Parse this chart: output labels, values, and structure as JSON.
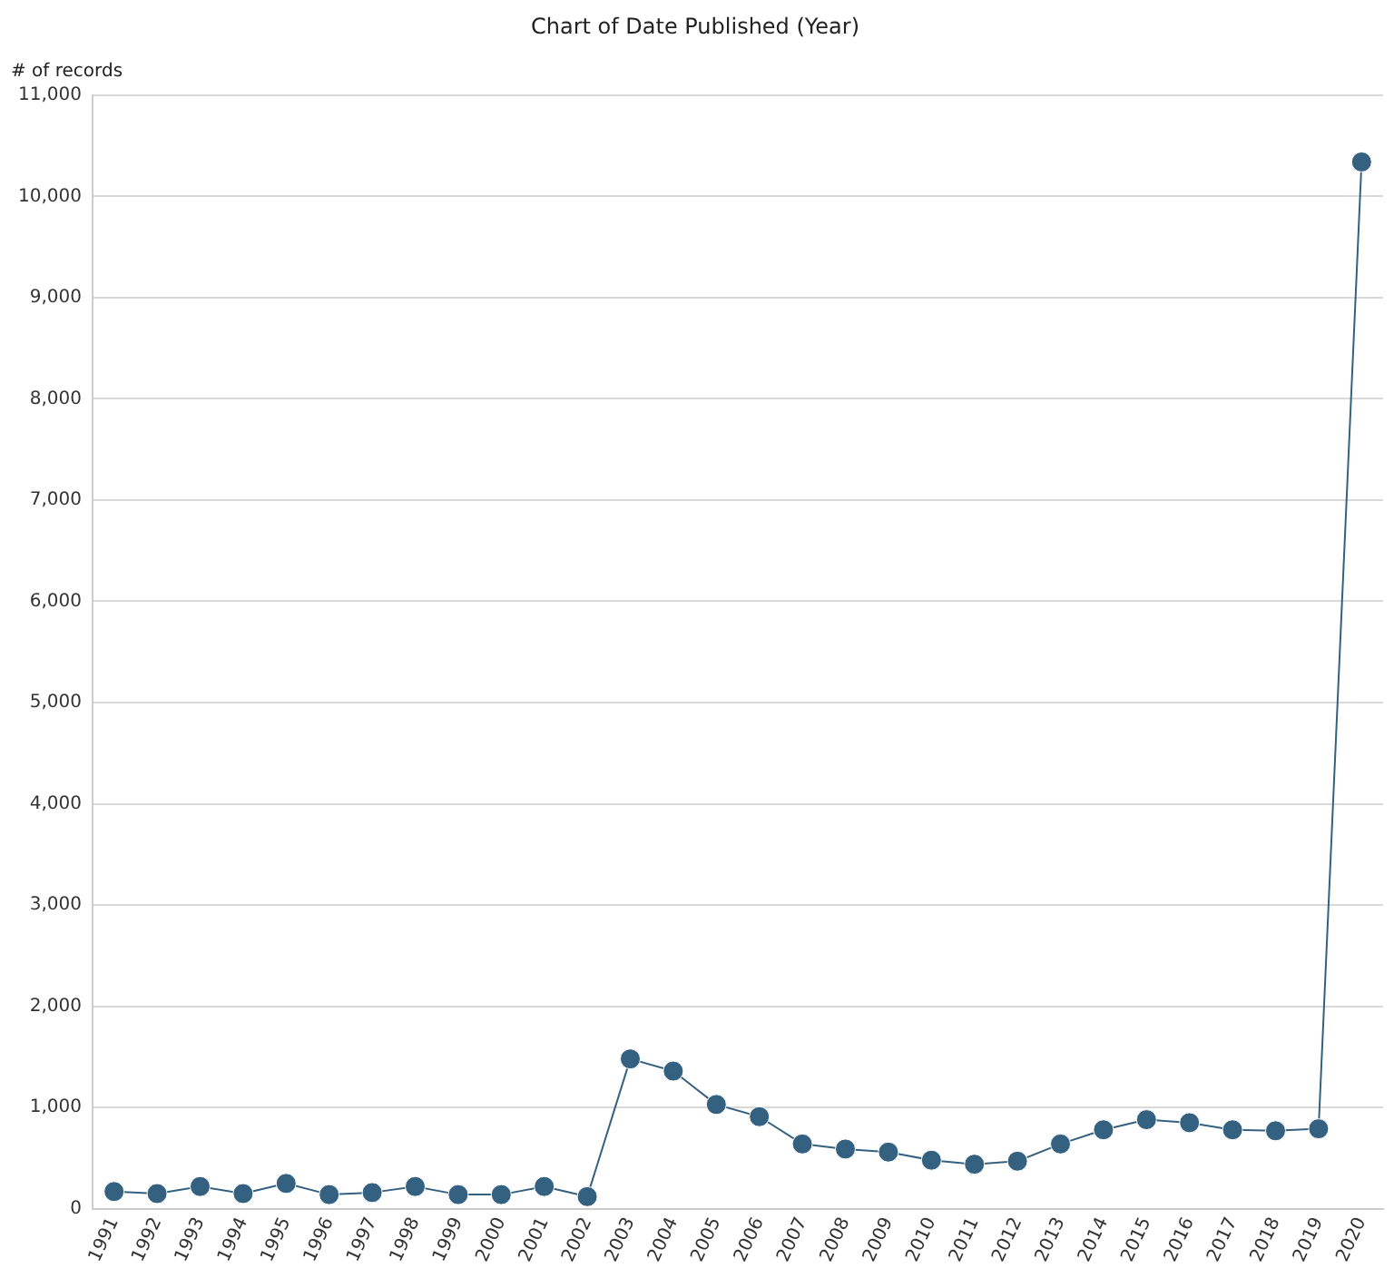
{
  "chart_data": {
    "type": "line",
    "title": "Chart of Date Published (Year)",
    "ylabel": "# of records",
    "categories": [
      "1991",
      "1992",
      "1993",
      "1994",
      "1995",
      "1996",
      "1997",
      "1998",
      "1999",
      "2000",
      "2001",
      "2002",
      "2003",
      "2004",
      "2005",
      "2006",
      "2007",
      "2008",
      "2009",
      "2010",
      "2011",
      "2012",
      "2013",
      "2014",
      "2015",
      "2016",
      "2017",
      "2018",
      "2019",
      "2020"
    ],
    "series": [
      {
        "color": "#346180",
        "values": [
          170,
          150,
          220,
          150,
          250,
          140,
          160,
          220,
          140,
          140,
          220,
          120,
          1480,
          1360,
          1030,
          910,
          640,
          590,
          560,
          480,
          440,
          470,
          640,
          780,
          880,
          850,
          780,
          770,
          790,
          10340
        ]
      }
    ],
    "ylim": [
      0,
      11000
    ],
    "yticks": [
      {
        "value": 0,
        "label": "0"
      },
      {
        "value": 1000,
        "label": "1,000"
      },
      {
        "value": 2000,
        "label": "2,000"
      },
      {
        "value": 3000,
        "label": "3,000"
      },
      {
        "value": 4000,
        "label": "4,000"
      },
      {
        "value": 5000,
        "label": "5,000"
      },
      {
        "value": 6000,
        "label": "6,000"
      },
      {
        "value": 7000,
        "label": "7,000"
      },
      {
        "value": 8000,
        "label": "8,000"
      },
      {
        "value": 9000,
        "label": "9,000"
      },
      {
        "value": 10000,
        "label": "10,000"
      },
      {
        "value": 11000,
        "label": "11,000"
      }
    ],
    "grid": "y",
    "marker": "circle",
    "line_style": "solid",
    "legend": false
  }
}
